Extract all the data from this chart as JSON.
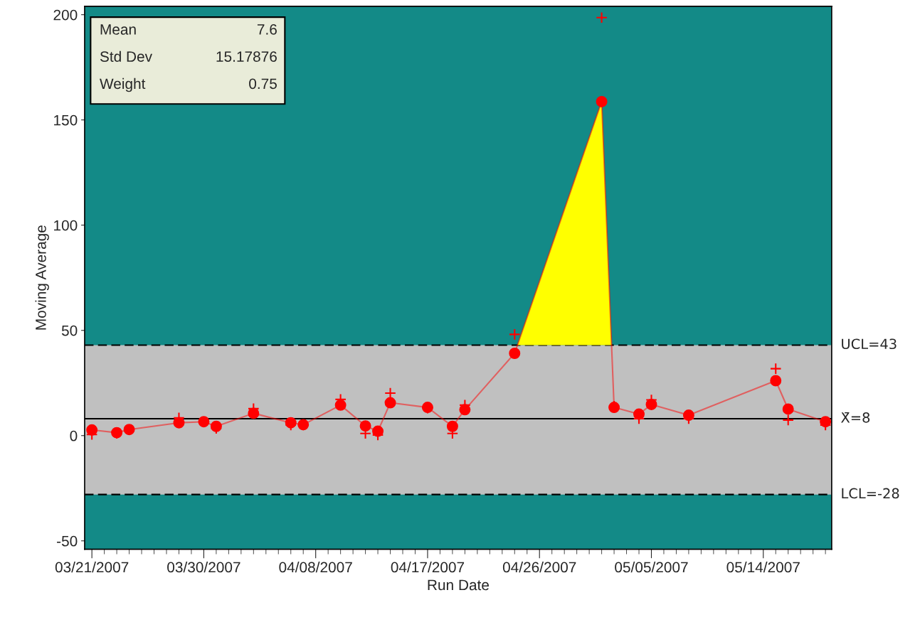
{
  "chart_data": {
    "type": "line",
    "xlabel": "Run Date",
    "ylabel": "Moving Average",
    "x": [
      "2007-03-21",
      "2007-03-23",
      "2007-03-24",
      "2007-03-28",
      "2007-03-30",
      "2007-03-31",
      "2007-04-03",
      "2007-04-06",
      "2007-04-07",
      "2007-04-10",
      "2007-04-12",
      "2007-04-13",
      "2007-04-14",
      "2007-04-17",
      "2007-04-19",
      "2007-04-20",
      "2007-04-24",
      "2007-05-01",
      "2007-05-02",
      "2007-05-04",
      "2007-05-05",
      "2007-05-08",
      "2007-05-15",
      "2007-05-16",
      "2007-05-19"
    ],
    "series": [
      {
        "color": "#ff0000",
        "marker": "circle",
        "values": [
          2.7,
          1.4,
          2.9,
          6.1,
          6.6,
          4.4,
          10.6,
          6.1,
          5.2,
          14.5,
          4.6,
          2.1,
          15.6,
          13.4,
          4.4,
          12.3,
          39.1,
          158.7,
          13.4,
          10.2,
          14.8,
          9.7,
          26.1,
          12.6,
          6.6
        ]
      },
      {
        "type": "scatter",
        "color": "#ff0000",
        "marker": "cross",
        "values": [
          0.5,
          1,
          null,
          8.4,
          null,
          3.4,
          12.8,
          5,
          5,
          17.2,
          1,
          0.3,
          20.2,
          13,
          1,
          14.5,
          48.1,
          198.6,
          14,
          8,
          17,
          8,
          31.8,
          7.4,
          5
        ]
      }
    ],
    "xlim": [
      "2007-03-20T10:00",
      "2007-05-19T12:00"
    ],
    "xticks": [
      {
        "value": "2007-03-21",
        "label": "03/21/2007"
      },
      {
        "value": "2007-03-30",
        "label": "03/30/2007"
      },
      {
        "value": "2007-04-08",
        "label": "04/08/2007"
      },
      {
        "value": "2007-04-17",
        "label": "04/17/2007"
      },
      {
        "value": "2007-04-26",
        "label": "04/26/2007"
      },
      {
        "value": "2007-05-05",
        "label": "05/05/2007"
      },
      {
        "value": "2007-05-14",
        "label": "05/14/2007"
      }
    ],
    "ylim": [
      -54,
      204
    ],
    "yticks": [
      -50,
      0,
      50,
      100,
      150,
      200
    ],
    "ref_lines": [
      {
        "axis": "y",
        "value": 43,
        "label": "UCL=43",
        "color": "#000000",
        "line_style": "dashed"
      },
      {
        "axis": "y",
        "value": 8,
        "label": "X̄=8",
        "color": "#000000",
        "line_style": "solid"
      },
      {
        "axis": "y",
        "value": -28,
        "label": "LCL=-28",
        "color": "#000000",
        "line_style": "dashed"
      }
    ],
    "bands": [
      {
        "axis": "y",
        "from": -28,
        "to": 43,
        "color": "#c0c0c0"
      }
    ],
    "annotations": [
      "Mean",
      "7.6",
      "Std Dev",
      "15.17876",
      "Weight",
      "0.75"
    ],
    "grid": false,
    "legend": false
  }
}
